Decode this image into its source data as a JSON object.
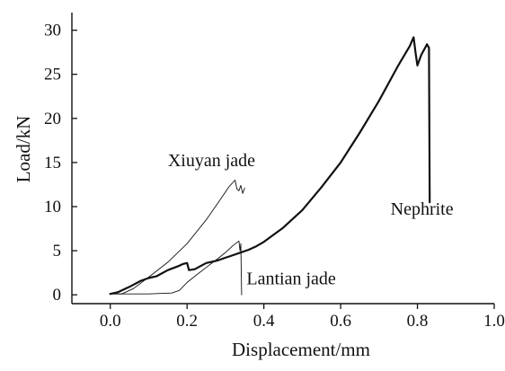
{
  "chart_data": {
    "type": "line",
    "xlabel": "Displacement/mm",
    "ylabel": "Load/kN",
    "xlim": [
      -0.1,
      1.0
    ],
    "ylim": [
      -1,
      32
    ],
    "xticks": [
      0.0,
      0.2,
      0.4,
      0.6,
      0.8,
      1.0
    ],
    "xtick_labels": [
      "0.0",
      "0.2",
      "0.4",
      "0.6",
      "0.8",
      "1.0"
    ],
    "yticks": [
      0,
      5,
      10,
      15,
      20,
      25,
      30
    ],
    "ytick_labels": [
      "0",
      "5",
      "10",
      "15",
      "20",
      "25",
      "30"
    ],
    "grid": false,
    "legend": "none",
    "series": [
      {
        "name": "Nephrite",
        "color": "#111111",
        "stroke": "thick",
        "points": [
          [
            0.0,
            0.1
          ],
          [
            0.02,
            0.3
          ],
          [
            0.05,
            0.9
          ],
          [
            0.08,
            1.6
          ],
          [
            0.1,
            1.9
          ],
          [
            0.12,
            2.1
          ],
          [
            0.15,
            2.8
          ],
          [
            0.18,
            3.3
          ],
          [
            0.19,
            3.5
          ],
          [
            0.2,
            3.6
          ],
          [
            0.205,
            2.8
          ],
          [
            0.22,
            2.9
          ],
          [
            0.25,
            3.6
          ],
          [
            0.28,
            3.9
          ],
          [
            0.3,
            4.2
          ],
          [
            0.32,
            4.5
          ],
          [
            0.34,
            4.8
          ],
          [
            0.36,
            5.1
          ],
          [
            0.38,
            5.5
          ],
          [
            0.4,
            6.0
          ],
          [
            0.45,
            7.6
          ],
          [
            0.5,
            9.6
          ],
          [
            0.55,
            12.2
          ],
          [
            0.6,
            15.0
          ],
          [
            0.65,
            18.4
          ],
          [
            0.7,
            22.0
          ],
          [
            0.75,
            26.0
          ],
          [
            0.78,
            28.2
          ],
          [
            0.79,
            29.2
          ],
          [
            0.795,
            27.5
          ],
          [
            0.8,
            26.0
          ],
          [
            0.81,
            27.2
          ],
          [
            0.825,
            28.4
          ],
          [
            0.83,
            28.0
          ],
          [
            0.832,
            10.5
          ]
        ]
      },
      {
        "name": "Xiuyan jade",
        "color": "#111111",
        "stroke": "thin",
        "points": [
          [
            0.0,
            0.1
          ],
          [
            0.03,
            0.1
          ],
          [
            0.06,
            0.7
          ],
          [
            0.1,
            2.0
          ],
          [
            0.15,
            3.7
          ],
          [
            0.2,
            5.8
          ],
          [
            0.25,
            8.5
          ],
          [
            0.28,
            10.4
          ],
          [
            0.31,
            12.3
          ],
          [
            0.325,
            13.0
          ],
          [
            0.33,
            12.0
          ],
          [
            0.335,
            11.8
          ],
          [
            0.34,
            12.4
          ],
          [
            0.345,
            11.5
          ],
          [
            0.35,
            12.1
          ]
        ]
      },
      {
        "name": "Lantian jade",
        "color": "#111111",
        "stroke": "thin",
        "points": [
          [
            0.0,
            0.1
          ],
          [
            0.1,
            0.1
          ],
          [
            0.16,
            0.2
          ],
          [
            0.18,
            0.5
          ],
          [
            0.2,
            1.4
          ],
          [
            0.22,
            2.1
          ],
          [
            0.25,
            3.1
          ],
          [
            0.28,
            4.1
          ],
          [
            0.3,
            4.8
          ],
          [
            0.32,
            5.6
          ],
          [
            0.335,
            6.1
          ],
          [
            0.338,
            5.0
          ],
          [
            0.34,
            5.8
          ],
          [
            0.342,
            0.0
          ]
        ]
      }
    ],
    "annotations": [
      {
        "text": "Xiuyan jade",
        "x": 0.15,
        "y": 14.6
      },
      {
        "text": "Lantian jade",
        "x": 0.355,
        "y": 1.2
      },
      {
        "text": "Nephrite",
        "x": 0.73,
        "y": 9.1
      }
    ]
  }
}
